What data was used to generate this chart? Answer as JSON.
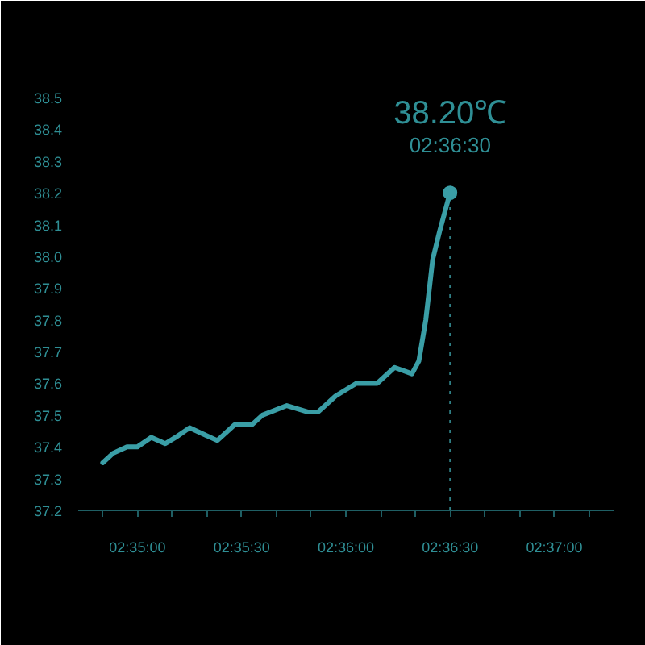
{
  "chart_data": {
    "type": "line",
    "line_style": "solid",
    "marker": "none",
    "grid": false,
    "xlim": [
      2.5786,
      2.6214
    ],
    "ylim": [
      37.2,
      38.5
    ],
    "xticks": [
      {
        "value": 2.58056,
        "label": null
      },
      {
        "value": 2.58333,
        "label": "02:35:00"
      },
      {
        "value": 2.58611,
        "label": null
      },
      {
        "value": 2.58889,
        "label": null
      },
      {
        "value": 2.59167,
        "label": "02:35:30"
      },
      {
        "value": 2.59444,
        "label": null
      },
      {
        "value": 2.59722,
        "label": null
      },
      {
        "value": 2.6,
        "label": "02:36:00"
      },
      {
        "value": 2.60278,
        "label": null
      },
      {
        "value": 2.60556,
        "label": null
      },
      {
        "value": 2.60833,
        "label": "02:36:30"
      },
      {
        "value": 2.61111,
        "label": null
      },
      {
        "value": 2.61389,
        "label": null
      },
      {
        "value": 2.61667,
        "label": "02:37:00"
      },
      {
        "value": 2.61944,
        "label": null
      }
    ],
    "yticks": [
      37.2,
      37.3,
      37.4,
      37.5,
      37.6,
      37.7,
      37.8,
      37.9,
      {
        "value": 38.0,
        "label": "38.0"
      },
      38.1,
      38.2,
      38.3,
      38.4,
      38.5
    ],
    "series": [
      {
        "color": "#3a9ea6",
        "x": [
          2.58056,
          2.58139,
          2.5825,
          2.58333,
          2.58444,
          2.58556,
          2.58639,
          2.5875,
          2.58861,
          2.58972,
          2.59111,
          2.5925,
          2.59333,
          2.59528,
          2.59694,
          2.59778,
          2.59917,
          2.60083,
          2.6025,
          2.60389,
          2.60528,
          2.60583,
          2.60639,
          2.60694,
          2.6075,
          2.60833
        ],
        "values": [
          37.35,
          37.38,
          37.4,
          37.4,
          37.43,
          37.41,
          37.43,
          37.46,
          37.44,
          37.42,
          37.47,
          37.47,
          37.5,
          37.53,
          37.51,
          37.51,
          37.56,
          37.6,
          37.6,
          37.65,
          37.63,
          37.67,
          37.8,
          37.99,
          38.08,
          38.2
        ]
      },
      {
        "type": "scatter",
        "marker": "circle",
        "color": "#3a9ea6",
        "x": [
          2.60833
        ],
        "values": [
          38.2
        ]
      }
    ],
    "ref_lines": [
      {
        "axis": "y",
        "value": 38.5,
        "color": "#1f6b70",
        "line_style": "solid"
      },
      {
        "axis": "x",
        "value": 2.60833,
        "color": "#2f7f85",
        "line_style": "dotted"
      }
    ],
    "annotations": [
      {
        "text": "38.20℃",
        "x": 2.60833,
        "y": 38.2
      },
      {
        "text": "02:36:30",
        "x": 2.60833,
        "y": 38.2
      }
    ]
  }
}
